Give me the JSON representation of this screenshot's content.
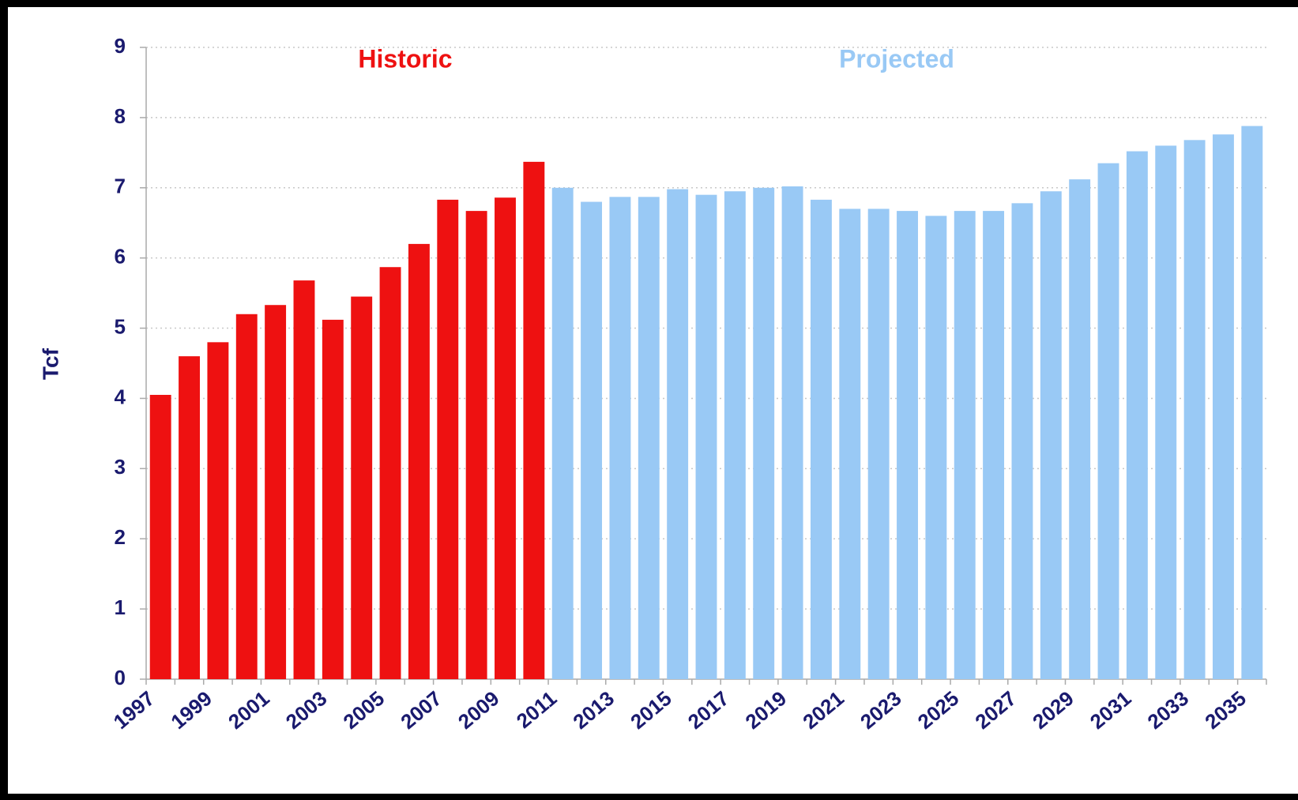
{
  "chart_data": {
    "type": "bar",
    "y_label": "Tcf",
    "annotations": [
      "Historic",
      "Projected"
    ],
    "categories": [
      "1997",
      null,
      "1999",
      null,
      "2001",
      null,
      "2003",
      null,
      "2005",
      null,
      "2007",
      null,
      "2009",
      null,
      "2011",
      null,
      "2013",
      null,
      "2015",
      null,
      "2017",
      null,
      "2019",
      null,
      "2021",
      null,
      "2023",
      null,
      "2025",
      null,
      "2027",
      null,
      "2029",
      null,
      "2031",
      null,
      "2033",
      null,
      "2035"
    ],
    "series": [
      {
        "name": "Historic",
        "color": "#ee1111",
        "values": [
          4.05,
          4.6,
          4.8,
          5.2,
          5.33,
          5.68,
          5.12,
          5.45,
          5.87,
          6.2,
          6.83,
          6.67,
          6.86,
          7.37,
          null,
          null,
          null,
          null,
          null,
          null,
          null,
          null,
          null,
          null,
          null,
          null,
          null,
          null,
          null,
          null,
          null,
          null,
          null,
          null,
          null,
          null,
          null,
          null,
          null
        ]
      },
      {
        "name": "Projected",
        "color": "#99c9f5",
        "values": [
          null,
          null,
          null,
          null,
          null,
          null,
          null,
          null,
          null,
          null,
          null,
          null,
          null,
          null,
          7.0,
          6.8,
          6.87,
          6.87,
          6.98,
          6.9,
          6.95,
          7.0,
          7.02,
          6.83,
          6.7,
          6.7,
          6.67,
          6.6,
          6.67,
          6.67,
          6.78,
          6.95,
          7.12,
          7.35,
          7.52,
          7.6,
          7.68,
          7.76,
          7.88
        ]
      }
    ],
    "ylim": [
      0,
      9
    ],
    "yticks": [
      0,
      1,
      2,
      3,
      4,
      5,
      6,
      7,
      8,
      9
    ],
    "grid": true
  }
}
